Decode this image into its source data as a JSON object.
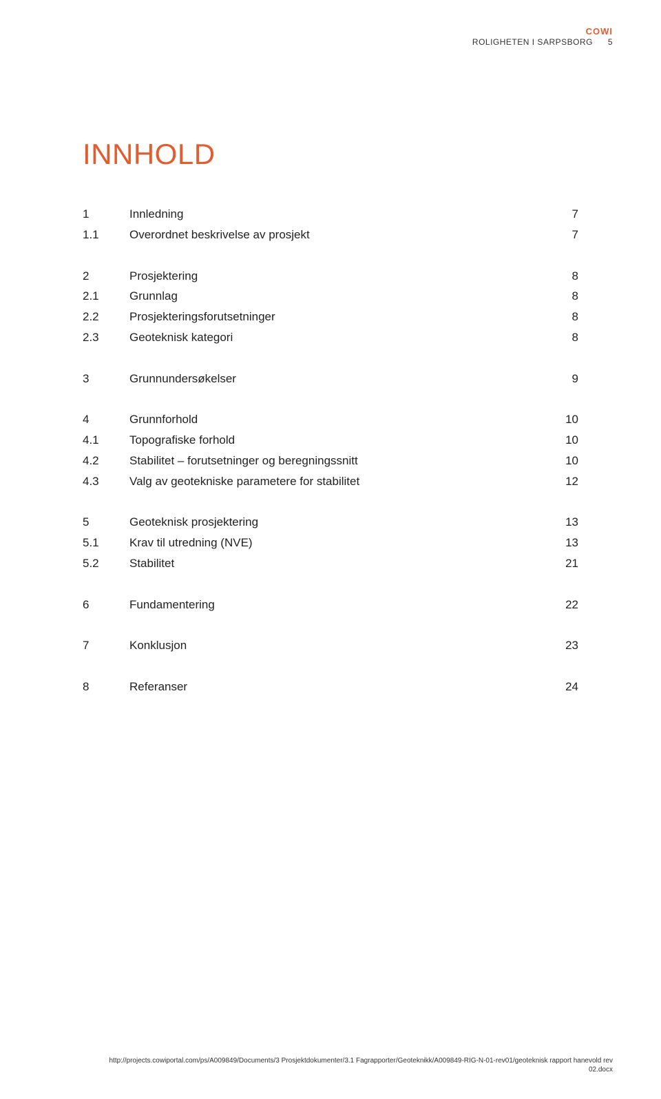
{
  "header": {
    "brand": "COWI",
    "doc_title": "ROLIGHETEN I SARPSBORG",
    "page_number": "5"
  },
  "title": "INNHOLD",
  "colors": {
    "accent": "#e35c2f",
    "text": "#222222",
    "background": "#ffffff"
  },
  "typography": {
    "title_fontsize": 42,
    "body_fontsize": 17,
    "header_fontsize": 12,
    "footer_fontsize": 10,
    "font_family": "Verdana"
  },
  "toc": [
    {
      "entries": [
        {
          "num": "1",
          "label": "Innledning",
          "page": "7"
        },
        {
          "num": "1.1",
          "label": "Overordnet beskrivelse av prosjekt",
          "page": "7"
        }
      ]
    },
    {
      "entries": [
        {
          "num": "2",
          "label": "Prosjektering",
          "page": "8"
        },
        {
          "num": "2.1",
          "label": "Grunnlag",
          "page": "8"
        },
        {
          "num": "2.2",
          "label": "Prosjekteringsforutsetninger",
          "page": "8"
        },
        {
          "num": "2.3",
          "label": "Geoteknisk kategori",
          "page": "8"
        }
      ]
    },
    {
      "entries": [
        {
          "num": "3",
          "label": "Grunnundersøkelser",
          "page": "9"
        }
      ]
    },
    {
      "entries": [
        {
          "num": "4",
          "label": "Grunnforhold",
          "page": "10"
        },
        {
          "num": "4.1",
          "label": "Topografiske forhold",
          "page": "10"
        },
        {
          "num": "4.2",
          "label": "Stabilitet – forutsetninger og beregningssnitt",
          "page": "10"
        },
        {
          "num": "4.3",
          "label": "Valg av geotekniske parametere for stabilitet",
          "page": "12"
        }
      ]
    },
    {
      "entries": [
        {
          "num": "5",
          "label": "Geoteknisk prosjektering",
          "page": "13"
        },
        {
          "num": "5.1",
          "label": "Krav til utredning (NVE)",
          "page": "13"
        },
        {
          "num": "5.2",
          "label": "Stabilitet",
          "page": "21"
        }
      ]
    },
    {
      "entries": [
        {
          "num": "6",
          "label": "Fundamentering",
          "page": "22"
        }
      ]
    },
    {
      "entries": [
        {
          "num": "7",
          "label": "Konklusjon",
          "page": "23"
        }
      ]
    },
    {
      "entries": [
        {
          "num": "8",
          "label": "Referanser",
          "page": "24"
        }
      ]
    }
  ],
  "footer": {
    "line1": "http://projects.cowiportal.com/ps/A009849/Documents/3 Prosjektdokumenter/3.1 Fagrapporter/Geoteknikk/A009849-RIG-N-01-rev01/geoteknisk rapport hanevold rev",
    "line2": "02.docx"
  }
}
